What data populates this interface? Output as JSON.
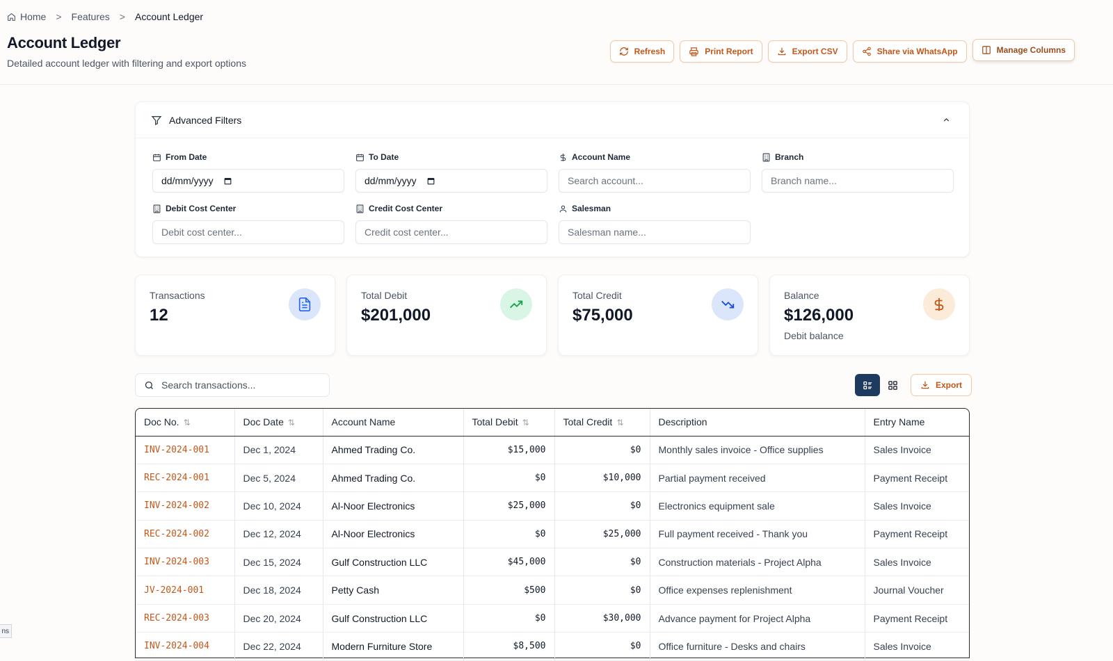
{
  "breadcrumb": {
    "home": "Home",
    "features": "Features",
    "current": "Account Ledger",
    "separator": ">"
  },
  "page": {
    "title": "Account Ledger",
    "subtitle": "Detailed account ledger with filtering and export options"
  },
  "actions": {
    "refresh": "Refresh",
    "print": "Print Report",
    "export_csv": "Export CSV",
    "share": "Share via WhatsApp",
    "manage": "Manage Columns"
  },
  "filters": {
    "title": "Advanced Filters",
    "from_date": {
      "label": "From Date",
      "value": "dd/mm/yyyy"
    },
    "to_date": {
      "label": "To Date",
      "value": "dd/mm/yyyy"
    },
    "account_name": {
      "label": "Account Name",
      "placeholder": "Search account..."
    },
    "branch": {
      "label": "Branch",
      "placeholder": "Branch name..."
    },
    "debit_cc": {
      "label": "Debit Cost Center",
      "placeholder": "Debit cost center..."
    },
    "credit_cc": {
      "label": "Credit Cost Center",
      "placeholder": "Credit cost center..."
    },
    "salesman": {
      "label": "Salesman",
      "placeholder": "Salesman name..."
    }
  },
  "stats": {
    "transactions": {
      "label": "Transactions",
      "value": "12"
    },
    "total_debit": {
      "label": "Total Debit",
      "value": "$201,000"
    },
    "total_credit": {
      "label": "Total Credit",
      "value": "$75,000"
    },
    "balance": {
      "label": "Balance",
      "value": "$126,000",
      "sub": "Debit balance"
    }
  },
  "toolbar": {
    "search_placeholder": "Search transactions...",
    "export": "Export"
  },
  "table": {
    "columns": {
      "doc_no": "Doc No.",
      "doc_date": "Doc Date",
      "account": "Account Name",
      "debit": "Total Debit",
      "credit": "Total Credit",
      "description": "Description",
      "entry": "Entry Name"
    },
    "sort_icon": "⇅",
    "rows": [
      {
        "doc": "INV-2024-001",
        "date": "Dec 1, 2024",
        "account": "Ahmed Trading Co.",
        "debit": "$15,000",
        "credit": "$0",
        "desc": "Monthly sales invoice - Office supplies",
        "entry": "Sales Invoice"
      },
      {
        "doc": "REC-2024-001",
        "date": "Dec 5, 2024",
        "account": "Ahmed Trading Co.",
        "debit": "$0",
        "credit": "$10,000",
        "desc": "Partial payment received",
        "entry": "Payment Receipt"
      },
      {
        "doc": "INV-2024-002",
        "date": "Dec 10, 2024",
        "account": "Al-Noor Electronics",
        "debit": "$25,000",
        "credit": "$0",
        "desc": "Electronics equipment sale",
        "entry": "Sales Invoice"
      },
      {
        "doc": "REC-2024-002",
        "date": "Dec 12, 2024",
        "account": "Al-Noor Electronics",
        "debit": "$0",
        "credit": "$25,000",
        "desc": "Full payment received - Thank you",
        "entry": "Payment Receipt"
      },
      {
        "doc": "INV-2024-003",
        "date": "Dec 15, 2024",
        "account": "Gulf Construction LLC",
        "debit": "$45,000",
        "credit": "$0",
        "desc": "Construction materials - Project Alpha",
        "entry": "Sales Invoice"
      },
      {
        "doc": "JV-2024-001",
        "date": "Dec 18, 2024",
        "account": "Petty Cash",
        "debit": "$500",
        "credit": "$0",
        "desc": "Office expenses replenishment",
        "entry": "Journal Voucher"
      },
      {
        "doc": "REC-2024-003",
        "date": "Dec 20, 2024",
        "account": "Gulf Construction LLC",
        "debit": "$0",
        "credit": "$30,000",
        "desc": "Advance payment for Project Alpha",
        "entry": "Payment Receipt"
      },
      {
        "doc": "INV-2024-004",
        "date": "Dec 22, 2024",
        "account": "Modern Furniture Store",
        "debit": "$8,500",
        "credit": "$0",
        "desc": "Office furniture - Desks and chairs",
        "entry": "Sales Invoice"
      }
    ]
  },
  "corner_tab": "ns",
  "colors": {
    "accent": "#c2571a",
    "navy": "#1e3a5f"
  }
}
